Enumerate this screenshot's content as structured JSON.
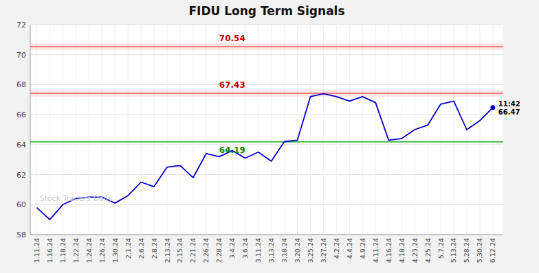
{
  "chart_data": {
    "type": "line",
    "title": "FIDU Long Term Signals",
    "categories": [
      "1.11.24",
      "1.16.24",
      "1.18.24",
      "1.22.24",
      "1.24.24",
      "1.26.24",
      "1.30.24",
      "2.1.24",
      "2.6.24",
      "2.8.24",
      "2.13.24",
      "2.15.24",
      "2.21.24",
      "2.26.24",
      "2.28.24",
      "3.4.24",
      "3.6.24",
      "3.11.24",
      "3.13.24",
      "3.18.24",
      "3.20.24",
      "3.25.24",
      "3.27.24",
      "4.2.24",
      "4.4.24",
      "4.9.24",
      "4.11.24",
      "4.16.24",
      "4.18.24",
      "4.23.24",
      "4.25.24",
      "5.7.24",
      "5.13.24",
      "5.28.24",
      "5.30.24",
      "6.12.24"
    ],
    "values": [
      59.8,
      59.0,
      60.0,
      60.4,
      60.5,
      60.5,
      60.1,
      60.6,
      61.5,
      61.2,
      62.5,
      62.6,
      61.8,
      63.4,
      63.2,
      63.6,
      63.1,
      63.5,
      62.9,
      64.2,
      64.3,
      67.2,
      67.4,
      67.2,
      66.9,
      67.2,
      66.8,
      64.3,
      64.4,
      65.0,
      65.3,
      66.7,
      66.9,
      65.0,
      65.6,
      66.47
    ],
    "color": "#0000cc",
    "ylim": [
      58,
      72
    ],
    "yticks": [
      58,
      60,
      62,
      64,
      66,
      68,
      70,
      72
    ],
    "grid": true,
    "annotations": [
      {
        "type": "hline",
        "y": 70.54,
        "label": "70.54",
        "color": "#ff8080",
        "label_color": "#cc0000",
        "label_side": "above"
      },
      {
        "type": "hline",
        "y": 67.43,
        "label": "67.43",
        "color": "#ff8080",
        "label_color": "#cc0000",
        "label_side": "above"
      },
      {
        "type": "hline",
        "y": 64.19,
        "label": "64.19",
        "color": "#44bb44",
        "label_color": "#008800",
        "label_side": "below"
      },
      {
        "type": "point",
        "x": "6.12.24",
        "y": 66.47,
        "label": "11:42"
      },
      {
        "type": "watermark",
        "text": "Stock Traders Daily"
      }
    ]
  }
}
